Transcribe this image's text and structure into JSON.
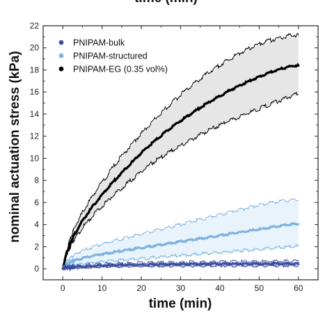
{
  "figure": {
    "cut_off_top_text": "time (min)"
  },
  "chart_data": {
    "type": "line",
    "title": "",
    "xlabel": "time (min)",
    "ylabel": "nominal actuation stress (kPa)",
    "xlim": [
      -5,
      65
    ],
    "ylim": [
      -1,
      22
    ],
    "x_ticks": [
      0,
      10,
      20,
      30,
      40,
      50,
      60
    ],
    "y_ticks": [
      0,
      2,
      4,
      6,
      8,
      10,
      12,
      14,
      16,
      18,
      20,
      22
    ],
    "grid": false,
    "legend_position": "top-left",
    "x": [
      0,
      1,
      2,
      3,
      5,
      7.5,
      10,
      12.5,
      15,
      17.5,
      20,
      22.5,
      25,
      27.5,
      30,
      32.5,
      35,
      37.5,
      40,
      42.5,
      45,
      47.5,
      50,
      52.5,
      55,
      57.5,
      60
    ],
    "series": [
      {
        "name": "PNIPAM-bulk",
        "color": "#3b4fa0",
        "band_color": "#c9cfe6",
        "mean": [
          0.0,
          0.05,
          0.08,
          0.1,
          0.15,
          0.2,
          0.24,
          0.27,
          0.29,
          0.31,
          0.32,
          0.33,
          0.34,
          0.35,
          0.36,
          0.37,
          0.37,
          0.38,
          0.38,
          0.39,
          0.39,
          0.4,
          0.4,
          0.4,
          0.41,
          0.41,
          0.41
        ],
        "upper": [
          0.05,
          0.12,
          0.16,
          0.19,
          0.24,
          0.3,
          0.35,
          0.39,
          0.42,
          0.44,
          0.46,
          0.48,
          0.49,
          0.5,
          0.51,
          0.52,
          0.53,
          0.54,
          0.55,
          0.56,
          0.57,
          0.58,
          0.59,
          0.6,
          0.61,
          0.62,
          0.63
        ],
        "lower": [
          -0.05,
          -0.03,
          0.0,
          0.02,
          0.05,
          0.09,
          0.12,
          0.14,
          0.15,
          0.16,
          0.17,
          0.18,
          0.18,
          0.19,
          0.19,
          0.2,
          0.2,
          0.2,
          0.21,
          0.21,
          0.21,
          0.21,
          0.22,
          0.22,
          0.22,
          0.22,
          0.22
        ]
      },
      {
        "name": "PNIPAM-structured",
        "color": "#7fb2e0",
        "band_color": "#e9f3fc",
        "mean": [
          0.0,
          0.35,
          0.55,
          0.7,
          0.92,
          1.12,
          1.28,
          1.43,
          1.57,
          1.71,
          1.85,
          1.99,
          2.13,
          2.27,
          2.41,
          2.55,
          2.69,
          2.83,
          2.97,
          3.11,
          3.25,
          3.39,
          3.53,
          3.67,
          3.81,
          3.95,
          4.05
        ],
        "upper": [
          0.0,
          0.6,
          0.95,
          1.2,
          1.55,
          1.88,
          2.15,
          2.4,
          2.63,
          2.85,
          3.07,
          3.29,
          3.51,
          3.73,
          3.95,
          4.17,
          4.39,
          4.61,
          4.83,
          5.05,
          5.27,
          5.49,
          5.71,
          5.88,
          6.0,
          6.1,
          6.15
        ],
        "lower": [
          0.0,
          0.1,
          0.2,
          0.28,
          0.38,
          0.48,
          0.56,
          0.64,
          0.71,
          0.78,
          0.85,
          0.92,
          0.99,
          1.06,
          1.13,
          1.2,
          1.27,
          1.34,
          1.41,
          1.48,
          1.55,
          1.62,
          1.69,
          1.76,
          1.83,
          1.9,
          1.97
        ]
      },
      {
        "name": "PNIPAM-EG (0.35 vol%)",
        "color": "#000000",
        "band_color": "#e6e6e6",
        "mean": [
          0.0,
          1.4,
          2.35,
          3.1,
          4.3,
          5.55,
          6.65,
          7.7,
          8.65,
          9.55,
          10.45,
          11.25,
          12.0,
          12.7,
          13.35,
          13.95,
          14.55,
          15.1,
          15.6,
          16.1,
          16.55,
          16.95,
          17.35,
          17.7,
          18.0,
          18.25,
          18.4
        ],
        "upper": [
          0.0,
          1.6,
          2.7,
          3.6,
          5.0,
          6.45,
          7.75,
          8.95,
          10.1,
          11.15,
          12.15,
          13.1,
          14.0,
          14.85,
          15.65,
          16.4,
          17.1,
          17.75,
          18.35,
          18.9,
          19.4,
          19.85,
          20.25,
          20.55,
          20.8,
          21.0,
          21.1
        ],
        "lower": [
          0.0,
          1.2,
          2.0,
          2.6,
          3.6,
          4.65,
          5.55,
          6.45,
          7.2,
          7.95,
          8.7,
          9.4,
          10.0,
          10.55,
          11.05,
          11.55,
          12.05,
          12.5,
          12.9,
          13.3,
          13.7,
          14.05,
          14.4,
          14.75,
          15.1,
          15.45,
          15.8
        ]
      }
    ]
  }
}
